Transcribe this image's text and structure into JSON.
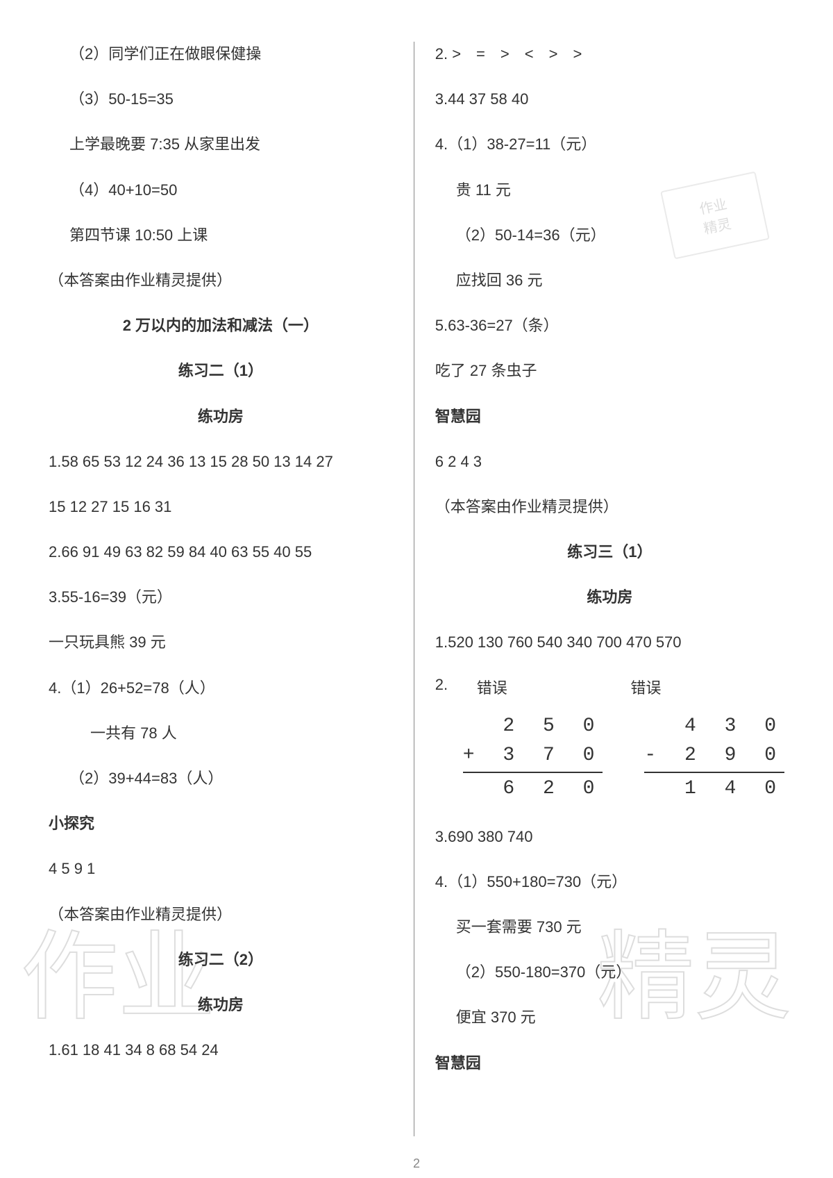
{
  "page_number": "2",
  "text_color": "#333333",
  "background_color": "#ffffff",
  "divider_color": "#888888",
  "watermark_color": "#e8e8e8",
  "font_size_body": 22,
  "font_size_math": 28,
  "left": {
    "l1": "（2）同学们正在做眼保健操",
    "l2": "（3）50-15=35",
    "l3": "上学最晚要 7:35 从家里出发",
    "l4": "（4）40+10=50",
    "l5": "第四节课 10:50 上课",
    "l6": "（本答案由作业精灵提供）",
    "h1": "2 万以内的加法和减法（一）",
    "h2": "练习二（1）",
    "h3": "练功房",
    "l7": "1.58 65 53 12 24 36 13 15 28 50 13 14 27",
    "l8": "15 12 27 15 16 31",
    "l9": "2.66 91 49 63 82 59 84 40 63 55 40 55",
    "l10": "3.55-16=39（元）",
    "l11": "一只玩具熊 39 元",
    "l12": "4.（1）26+52=78（人）",
    "l13": "一共有 78 人",
    "l14": "（2）39+44=83（人）",
    "h4": "小探究",
    "l15": "4 5 9 1",
    "l16": "（本答案由作业精灵提供）",
    "h5": "练习二（2）",
    "h6": "练功房",
    "l17": "1.61 18 41 34 8 68 54 24"
  },
  "right": {
    "l1": "2. >　=　>　<　>　>",
    "l2": "3.44 37 58 40",
    "l3": "4.（1）38-27=11（元）",
    "l4": "贵 11 元",
    "l5": "（2）50-14=36（元）",
    "l6": "应找回 36 元",
    "l7": "5.63-36=27（条）",
    "l8": "吃了 27 条虫子",
    "h1": "智慧园",
    "l9": "6 2 4 3",
    "l10": "（本答案由作业精灵提供）",
    "h2": "练习三（1）",
    "h3": "练功房",
    "l11": "1.520 130 760 540 340 700 470 570",
    "q2_label": "2.",
    "q2_err1": "错误",
    "q2_err2": "错误",
    "math1": {
      "r1": "  2 5 0",
      "r2": "+ 3 7 0",
      "r3": "  6 2 0"
    },
    "math2": {
      "r1": "  4 3 0",
      "r2": "- 2 9 0",
      "r3": "  1 4 0"
    },
    "l12": "3.690 380 740",
    "l13": "4.（1）550+180=730（元）",
    "l14": "买一套需要 730 元",
    "l15": "（2）550-180=370（元）",
    "l16": "便宜 370 元",
    "h4": "智慧园"
  },
  "stamp": {
    "line1": "作业",
    "line2": "精灵"
  },
  "watermark": {
    "wm1": "作业",
    "wm2": "精灵"
  }
}
